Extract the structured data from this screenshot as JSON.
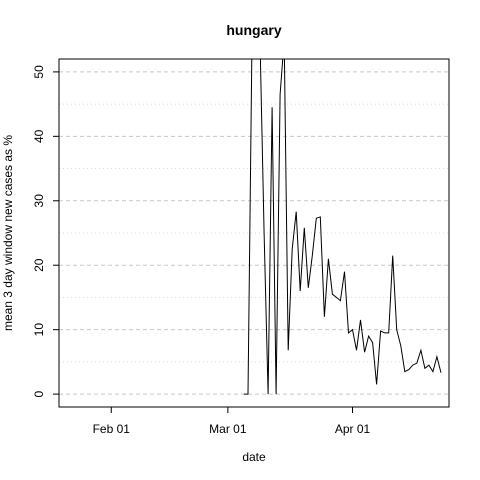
{
  "chart_data": {
    "type": "line",
    "title": "hungary",
    "xlabel": "date",
    "ylabel": "mean  3  day window new cases as %",
    "x_ticks": [
      {
        "label": "Feb 01",
        "day": 31
      },
      {
        "label": "Mar 01",
        "day": 60
      },
      {
        "label": "Apr 01",
        "day": 91
      }
    ],
    "xlim_days": [
      18,
      115
    ],
    "y_ticks": [
      0,
      10,
      20,
      30,
      40,
      50
    ],
    "ylim": [
      -2,
      52
    ],
    "grid": {
      "major_y": true,
      "minor_y": true,
      "style": "dashed"
    },
    "series": [
      {
        "x_days": [
          64,
          65,
          66,
          67,
          68,
          69,
          70,
          71,
          72,
          73,
          74,
          75,
          76,
          77,
          78,
          79,
          80,
          81,
          82,
          83,
          84,
          85,
          86,
          87,
          88,
          89,
          90,
          91,
          92,
          93,
          94,
          95,
          96,
          97,
          98,
          99,
          100,
          101,
          102,
          103,
          104,
          105,
          106,
          107,
          108,
          109,
          110,
          111,
          112,
          113
        ],
        "values": [
          0,
          0,
          55,
          55,
          55,
          25,
          0,
          44.5,
          0,
          46.5,
          55,
          6.8,
          22.5,
          28.3,
          16,
          25.8,
          16.5,
          21.5,
          27.3,
          27.5,
          12,
          21,
          15.5,
          15,
          14.5,
          19,
          9.5,
          10,
          6.8,
          11.5,
          6.5,
          9,
          8,
          1.5,
          9.8,
          9.5,
          9.5,
          21.5,
          10,
          7.5,
          3.5,
          3.8,
          4.5,
          4.8,
          6.8,
          4,
          4.5,
          3.5,
          5.8,
          3.3
        ]
      }
    ]
  }
}
